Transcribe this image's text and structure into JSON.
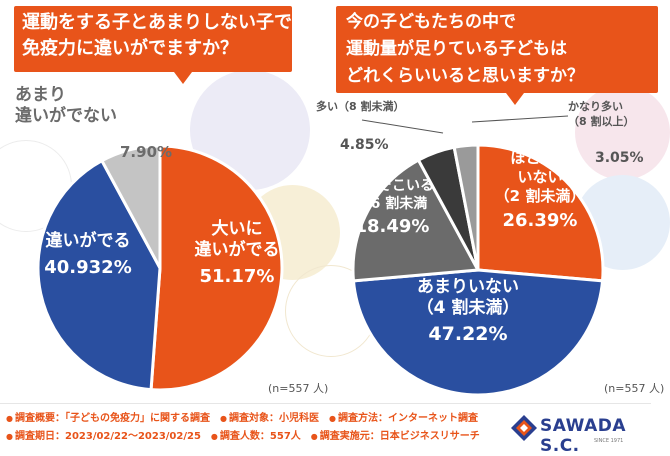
{
  "chart_data": [
    {
      "type": "pie",
      "title": [
        "運動をする子とあまりしない子で",
        "免疫力に違いがでますか？"
      ],
      "slices": [
        {
          "label": "大いに違いがでる",
          "lines": [
            "大いに",
            "違いがでる"
          ],
          "percent": "51.17%",
          "value": 51.17,
          "color": "#e8541a"
        },
        {
          "label": "違いがでる",
          "lines": [
            "違いがでる"
          ],
          "percent": "40.932%",
          "value": 40.932,
          "color": "#2a4fa0"
        },
        {
          "label": "あまり違いがでない",
          "lines": [
            "あまり",
            "違いがでない"
          ],
          "percent": "7.90%",
          "value": 7.9,
          "color": "#c4c4c4"
        }
      ],
      "sample_note": "(n=557 人)"
    },
    {
      "type": "pie",
      "title": [
        "今の子どもたちの中で",
        "運動量が足りている子どもは",
        "どれくらいいると思いますか？"
      ],
      "slices": [
        {
          "label": "ほとんどいない（2割未満）",
          "lines": [
            "ほとんど",
            "いない",
            "（2 割未満）"
          ],
          "percent": "26.39%",
          "value": 26.39,
          "color": "#e8541a"
        },
        {
          "label": "あまりいない（4割未満）",
          "lines": [
            "あまりいない",
            "（4 割未満）"
          ],
          "percent": "47.22%",
          "value": 47.22,
          "color": "#2a4fa0"
        },
        {
          "label": "そこそこいる（6割未満）",
          "lines": [
            "そこそこいる",
            "（6 割未満"
          ],
          "percent": "18.49%",
          "value": 18.49,
          "color": "#6b6b6b"
        },
        {
          "label": "多い（8割未満）",
          "lines": [
            "多い（8 割未満）"
          ],
          "percent": "4.85%",
          "value": 4.85,
          "color": "#3a3a3a"
        },
        {
          "label": "かなり多い（8割以上）",
          "lines": [
            "かなり多い",
            "（8 割以上）"
          ],
          "percent": "3.05%",
          "value": 3.05,
          "color": "#9a9a9a"
        }
      ],
      "sample_note": "(n=557 人)"
    }
  ],
  "footer": {
    "row1": [
      "調査概要：「子どもの免疫力」に関する調査",
      "調査対象：小児科医",
      "調査方法：インターネット調査"
    ],
    "row2": [
      "調査期日：2023/02/22〜2023/02/25",
      "調査人数：557人",
      "調査実施元：日本ビジネスリサーチ"
    ],
    "brand_name": "SAWADA S.C.",
    "brand_tagline": "SINCE 1971"
  },
  "colors": {
    "accent": "#e8541a",
    "navy": "#2a4fa0"
  }
}
